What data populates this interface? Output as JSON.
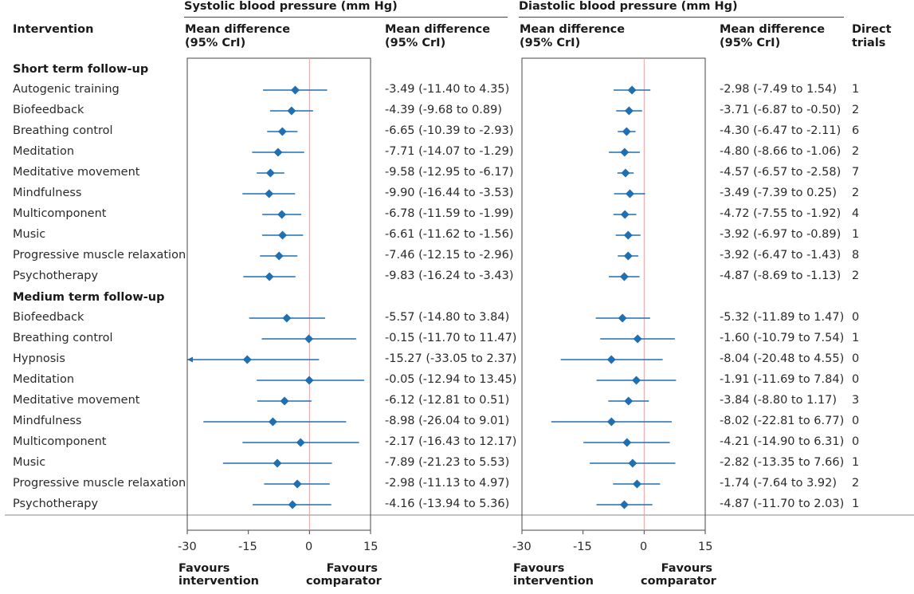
{
  "headers": {
    "systolic_title": "Systolic blood pressure (mm Hg)",
    "diastolic_title": "Diastolic blood pressure (mm Hg)",
    "intervention": "Intervention",
    "md_plot_1": "Mean difference",
    "md_plot_2": "(95% CrI)",
    "md_text_1": "Mean difference",
    "md_text_2": "(95% CrI)",
    "direct_1": "Direct",
    "direct_2": "trials"
  },
  "sections": {
    "short": "Short term follow-up",
    "medium": "Medium term follow-up"
  },
  "axis": {
    "ticks": [
      "-30",
      "-15",
      "0",
      "15"
    ],
    "favours_left_1": "Favours",
    "favours_left_2": "intervention",
    "favours_right_1": "Favours",
    "favours_right_2": "comparator"
  },
  "colors": {
    "marker": "#1f6fb2",
    "zero_line": "#e8a0a0"
  },
  "chart_data": {
    "type": "forest",
    "xlim": [
      -30,
      15
    ],
    "short_term": [
      {
        "intervention": "Autogenic training",
        "sbp": [
          -3.49,
          -11.4,
          4.35
        ],
        "sbp_text": "-3.49 (-11.40 to 4.35)",
        "dbp": [
          -2.98,
          -7.49,
          1.54
        ],
        "dbp_text": "-2.98 (-7.49 to 1.54)",
        "direct": "1"
      },
      {
        "intervention": "Biofeedback",
        "sbp": [
          -4.39,
          -9.68,
          0.89
        ],
        "sbp_text": "-4.39 (-9.68 to 0.89)",
        "dbp": [
          -3.71,
          -6.87,
          -0.5
        ],
        "dbp_text": "-3.71 (-6.87 to -0.50)",
        "direct": "2"
      },
      {
        "intervention": "Breathing control",
        "sbp": [
          -6.65,
          -10.39,
          -2.93
        ],
        "sbp_text": "-6.65 (-10.39 to -2.93)",
        "dbp": [
          -4.3,
          -6.47,
          -2.11
        ],
        "dbp_text": "-4.30 (-6.47 to -2.11)",
        "direct": "6"
      },
      {
        "intervention": "Meditation",
        "sbp": [
          -7.71,
          -14.07,
          -1.29
        ],
        "sbp_text": "-7.71 (-14.07 to -1.29)",
        "dbp": [
          -4.8,
          -8.66,
          -1.06
        ],
        "dbp_text": "-4.80 (-8.66 to -1.06)",
        "direct": "2"
      },
      {
        "intervention": "Meditative movement",
        "sbp": [
          -9.58,
          -12.95,
          -6.17
        ],
        "sbp_text": "-9.58 (-12.95 to -6.17)",
        "dbp": [
          -4.57,
          -6.57,
          -2.58
        ],
        "dbp_text": "-4.57 (-6.57 to -2.58)",
        "direct": "7"
      },
      {
        "intervention": "Mindfulness",
        "sbp": [
          -9.9,
          -16.44,
          -3.53
        ],
        "sbp_text": "-9.90 (-16.44 to -3.53)",
        "dbp": [
          -3.49,
          -7.39,
          0.25
        ],
        "dbp_text": "-3.49 (-7.39 to 0.25)",
        "direct": "2"
      },
      {
        "intervention": "Multicomponent",
        "sbp": [
          -6.78,
          -11.59,
          -1.99
        ],
        "sbp_text": "-6.78 (-11.59 to -1.99)",
        "dbp": [
          -4.72,
          -7.55,
          -1.92
        ],
        "dbp_text": "-4.72 (-7.55 to -1.92)",
        "direct": "4"
      },
      {
        "intervention": "Music",
        "sbp": [
          -6.61,
          -11.62,
          -1.56
        ],
        "sbp_text": "-6.61 (-11.62 to -1.56)",
        "dbp": [
          -3.92,
          -6.97,
          -0.89
        ],
        "dbp_text": "-3.92 (-6.97 to -0.89)",
        "direct": "1"
      },
      {
        "intervention": "Progressive muscle relaxation",
        "sbp": [
          -7.46,
          -12.15,
          -2.96
        ],
        "sbp_text": "-7.46 (-12.15 to -2.96)",
        "dbp": [
          -3.92,
          -6.47,
          -1.43
        ],
        "dbp_text": "-3.92 (-6.47 to -1.43)",
        "direct": "8"
      },
      {
        "intervention": "Psychotherapy",
        "sbp": [
          -9.83,
          -16.24,
          -3.43
        ],
        "sbp_text": "-9.83 (-16.24 to -3.43)",
        "dbp": [
          -4.87,
          -8.69,
          -1.13
        ],
        "dbp_text": "-4.87 (-8.69 to -1.13)",
        "direct": "2"
      }
    ],
    "medium_term": [
      {
        "intervention": "Biofeedback",
        "sbp": [
          -5.57,
          -14.8,
          3.84
        ],
        "sbp_text": "-5.57 (-14.80 to 3.84)",
        "dbp": [
          -5.32,
          -11.89,
          1.47
        ],
        "dbp_text": "-5.32 (-11.89 to 1.47)",
        "direct": "0"
      },
      {
        "intervention": "Breathing control",
        "sbp": [
          -0.15,
          -11.7,
          11.47
        ],
        "sbp_text": "-0.15 (-11.70 to 11.47)",
        "dbp": [
          -1.6,
          -10.79,
          7.54
        ],
        "dbp_text": "-1.60 (-10.79 to 7.54)",
        "direct": "1"
      },
      {
        "intervention": "Hypnosis",
        "sbp": [
          -15.27,
          -33.05,
          2.37
        ],
        "sbp_text": "-15.27 (-33.05 to 2.37)",
        "dbp": [
          -8.04,
          -20.48,
          4.55
        ],
        "dbp_text": "-8.04 (-20.48 to 4.55)",
        "direct": "0"
      },
      {
        "intervention": "Meditation",
        "sbp": [
          -0.05,
          -12.94,
          13.45
        ],
        "sbp_text": "-0.05 (-12.94 to 13.45)",
        "dbp": [
          -1.91,
          -11.69,
          7.84
        ],
        "dbp_text": "-1.91 (-11.69 to 7.84)",
        "direct": "0"
      },
      {
        "intervention": "Meditative movement",
        "sbp": [
          -6.12,
          -12.81,
          0.51
        ],
        "sbp_text": "-6.12 (-12.81 to 0.51)",
        "dbp": [
          -3.84,
          -8.8,
          1.17
        ],
        "dbp_text": "-3.84 (-8.80 to 1.17)",
        "direct": "3"
      },
      {
        "intervention": "Mindfulness",
        "sbp": [
          -8.98,
          -26.04,
          9.01
        ],
        "sbp_text": "-8.98 (-26.04 to 9.01)",
        "dbp": [
          -8.02,
          -22.81,
          6.77
        ],
        "dbp_text": "-8.02 (-22.81 to 6.77)",
        "direct": "0"
      },
      {
        "intervention": "Multicomponent",
        "sbp": [
          -2.17,
          -16.43,
          12.17
        ],
        "sbp_text": "-2.17 (-16.43 to 12.17)",
        "dbp": [
          -4.21,
          -14.9,
          6.31
        ],
        "dbp_text": "-4.21 (-14.90 to 6.31)",
        "direct": "0"
      },
      {
        "intervention": "Music",
        "sbp": [
          -7.89,
          -21.23,
          5.53
        ],
        "sbp_text": "-7.89 (-21.23 to 5.53)",
        "dbp": [
          -2.82,
          -13.35,
          7.66
        ],
        "dbp_text": "-2.82 (-13.35 to 7.66)",
        "direct": "1"
      },
      {
        "intervention": "Progressive muscle relaxation",
        "sbp": [
          -2.98,
          -11.13,
          4.97
        ],
        "sbp_text": "-2.98 (-11.13 to 4.97)",
        "dbp": [
          -1.74,
          -7.64,
          3.92
        ],
        "dbp_text": "-1.74 (-7.64 to 3.92)",
        "direct": "2"
      },
      {
        "intervention": "Psychotherapy",
        "sbp": [
          -4.16,
          -13.94,
          5.36
        ],
        "sbp_text": "-4.16 (-13.94 to 5.36)",
        "dbp": [
          -4.87,
          -11.7,
          2.03
        ],
        "dbp_text": "-4.87 (-11.70 to 2.03)",
        "direct": "1"
      }
    ]
  }
}
